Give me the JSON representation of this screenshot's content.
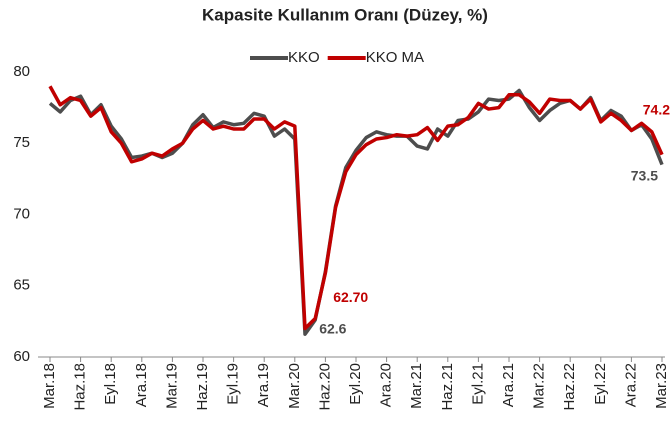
{
  "chart_data": {
    "type": "line",
    "title": "Kapasite Kullanım Oranı (Düzey, %)",
    "categories": [
      "Mar.18",
      null,
      null,
      "Haz.18",
      null,
      null,
      "Eyl.18",
      null,
      null,
      "Ara.18",
      null,
      null,
      "Mar.19",
      null,
      null,
      "Haz.19",
      null,
      null,
      "Eyl.19",
      null,
      null,
      "Ara.19",
      null,
      null,
      "Mar.20",
      null,
      null,
      "Haz.20",
      null,
      null,
      "Eyl.20",
      null,
      null,
      "Ara.20",
      null,
      null,
      "Mar.21",
      null,
      null,
      "Haz.21",
      null,
      null,
      "Eyl.21",
      null,
      null,
      "Ara.21",
      null,
      null,
      "Mar.22",
      null,
      null,
      "Haz.22",
      null,
      null,
      "Eyl.22",
      null,
      null,
      "Ara.22",
      null,
      null,
      "Mar.23"
    ],
    "series": [
      {
        "name": "KKO",
        "color": "#4d4d4d",
        "values": [
          77.8,
          77.2,
          78.0,
          78.3,
          77.0,
          77.7,
          76.2,
          75.3,
          74.0,
          74.1,
          74.3,
          74.0,
          74.3,
          75.0,
          76.3,
          77.0,
          76.1,
          76.5,
          76.3,
          76.4,
          77.1,
          76.9,
          75.5,
          76.0,
          75.3,
          61.6,
          62.6,
          66.0,
          70.6,
          73.3,
          74.5,
          75.4,
          75.8,
          75.6,
          75.5,
          75.5,
          74.8,
          74.6,
          76.0,
          75.5,
          76.6,
          76.7,
          77.2,
          78.1,
          78.0,
          78.1,
          78.7,
          77.5,
          76.6,
          77.3,
          77.8,
          78.0,
          77.4,
          78.2,
          76.6,
          77.3,
          76.9,
          75.9,
          76.3,
          75.3,
          73.5
        ],
        "value_labels": [
          null,
          null,
          null,
          null,
          null,
          null,
          null,
          null,
          null,
          null,
          null,
          null,
          null,
          null,
          null,
          null,
          null,
          null,
          null,
          null,
          null,
          null,
          null,
          null,
          null,
          null,
          "62.6",
          null,
          null,
          null,
          null,
          null,
          null,
          null,
          null,
          null,
          null,
          null,
          null,
          null,
          null,
          null,
          null,
          null,
          null,
          null,
          null,
          null,
          null,
          null,
          null,
          null,
          null,
          null,
          null,
          null,
          null,
          null,
          null,
          null,
          "73.5"
        ]
      },
      {
        "name": "KKO MA",
        "color": "#c00000",
        "values": [
          79.0,
          77.7,
          78.2,
          78.0,
          76.9,
          77.5,
          75.8,
          75.0,
          73.7,
          73.9,
          74.3,
          74.1,
          74.6,
          75.0,
          76.0,
          76.6,
          76.0,
          76.2,
          76.0,
          76.0,
          76.7,
          76.7,
          76.0,
          76.5,
          76.2,
          62.0,
          62.7,
          65.9,
          70.5,
          73.0,
          74.2,
          74.9,
          75.3,
          75.4,
          75.6,
          75.5,
          75.6,
          76.1,
          75.2,
          76.2,
          76.3,
          76.8,
          77.8,
          77.4,
          77.5,
          78.4,
          78.4,
          77.9,
          77.1,
          78.1,
          78.0,
          78.0,
          77.4,
          78.1,
          76.5,
          77.1,
          76.6,
          75.9,
          76.4,
          75.8,
          74.2
        ],
        "value_labels": [
          null,
          null,
          null,
          null,
          null,
          null,
          null,
          null,
          null,
          null,
          null,
          null,
          null,
          null,
          null,
          null,
          null,
          null,
          null,
          null,
          null,
          null,
          null,
          null,
          null,
          null,
          "62.70",
          null,
          null,
          null,
          null,
          null,
          null,
          null,
          null,
          null,
          null,
          null,
          null,
          null,
          null,
          null,
          null,
          null,
          null,
          null,
          null,
          null,
          null,
          null,
          null,
          null,
          null,
          null,
          null,
          null,
          null,
          null,
          null,
          null,
          "74.2"
        ]
      }
    ],
    "ylim": [
      60,
      80
    ],
    "yticks": [
      60,
      65,
      70,
      75,
      80
    ],
    "grid": false,
    "legend": "top"
  }
}
